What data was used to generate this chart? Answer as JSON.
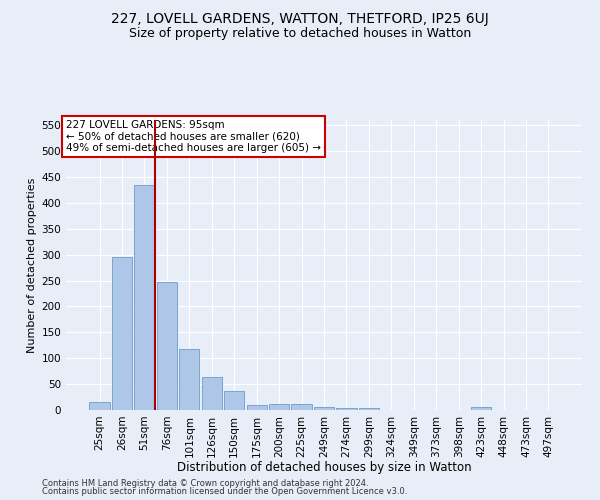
{
  "title1": "227, LOVELL GARDENS, WATTON, THETFORD, IP25 6UJ",
  "title2": "Size of property relative to detached houses in Watton",
  "xlabel": "Distribution of detached houses by size in Watton",
  "ylabel": "Number of detached properties",
  "footnote1": "Contains HM Land Registry data © Crown copyright and database right 2024.",
  "footnote2": "Contains public sector information licensed under the Open Government Licence v3.0.",
  "categories": [
    "25sqm",
    "26sqm",
    "51sqm",
    "76sqm",
    "101sqm",
    "126sqm",
    "150sqm",
    "175sqm",
    "200sqm",
    "225sqm",
    "249sqm",
    "274sqm",
    "299sqm",
    "324sqm",
    "349sqm",
    "373sqm",
    "398sqm",
    "423sqm",
    "448sqm",
    "473sqm",
    "497sqm"
  ],
  "values": [
    15,
    295,
    435,
    247,
    118,
    63,
    36,
    9,
    11,
    11,
    5,
    3,
    3,
    0,
    0,
    0,
    0,
    5,
    0,
    0,
    0
  ],
  "bar_color": "#aec6e8",
  "bar_edge_color": "#5a8fc2",
  "vline_x_index": 2,
  "vline_color": "#aa0000",
  "annotation_text": "227 LOVELL GARDENS: 95sqm\n← 50% of detached houses are smaller (620)\n49% of semi-detached houses are larger (605) →",
  "annotation_box_color": "#ffffff",
  "annotation_box_edge_color": "#cc0000",
  "ylim_max": 560,
  "yticks": [
    0,
    50,
    100,
    150,
    200,
    250,
    300,
    350,
    400,
    450,
    500,
    550
  ],
  "bg_color": "#e8eef8",
  "grid_color": "#ffffff",
  "title1_fontsize": 10,
  "title2_fontsize": 9,
  "xlabel_fontsize": 8.5,
  "ylabel_fontsize": 8,
  "tick_fontsize": 7.5,
  "annotation_fontsize": 7.5
}
